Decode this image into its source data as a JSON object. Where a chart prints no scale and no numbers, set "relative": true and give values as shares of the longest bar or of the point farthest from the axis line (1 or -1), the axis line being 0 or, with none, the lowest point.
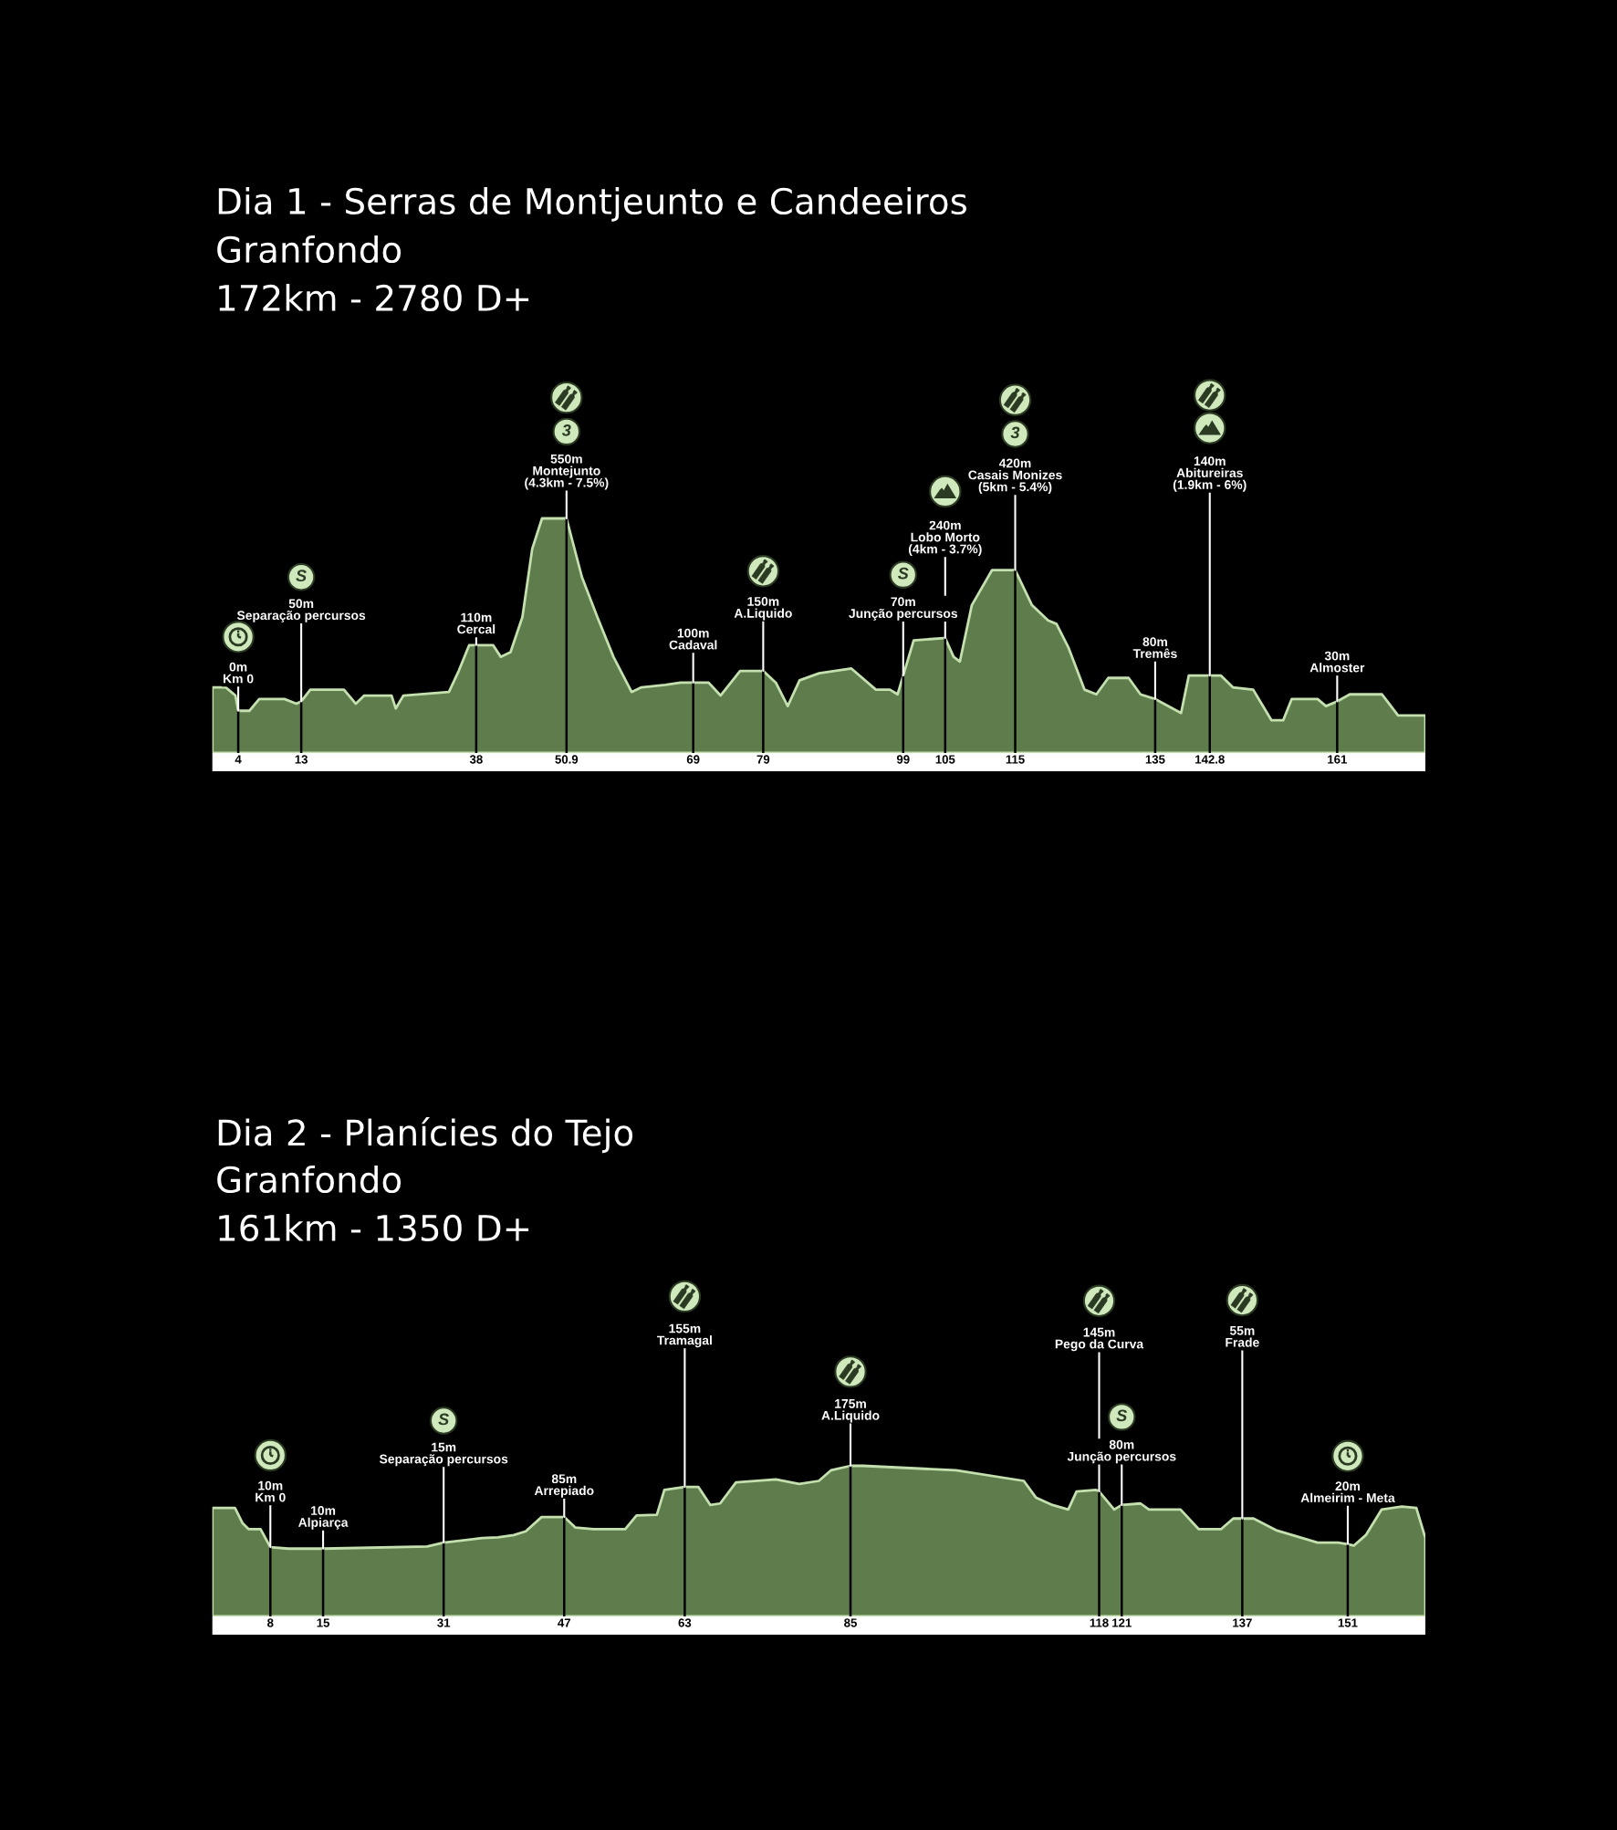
{
  "chart_data": [
    {
      "type": "area",
      "title": "Dia 1 - Serras de Montjeunto e Candeeiros",
      "subtitle": "Granfondo\n172km - 2780 D+",
      "relative": true,
      "tick_labels": "x",
      "x": [
        0.3,
        2.2,
        3.6,
        4,
        5.6,
        7.0,
        10.6,
        12.3,
        13,
        14.3,
        19.1,
        20.8,
        22.0,
        25.9,
        26.5,
        27.6,
        34.1,
        35.5,
        37.0,
        38,
        40.4,
        41.5,
        42.9,
        44.6,
        46.0,
        47.4,
        50.9,
        53.1,
        55.3,
        57.6,
        60.2,
        61.6,
        65.0,
        67.2,
        69,
        71.2,
        72.9,
        75.7,
        79,
        80.8,
        82.5,
        84.2,
        87.0,
        91.6,
        95.1,
        97.1,
        98.2,
        99,
        100.5,
        104.8,
        105,
        106.2,
        107.1,
        108.8,
        111.7,
        115,
        117.4,
        119.7,
        120.9,
        122.6,
        124.9,
        126.6,
        128.3,
        131.2,
        132.9,
        135,
        138.7,
        139.8,
        142.8,
        144.4,
        146.1,
        149.0,
        151.6,
        153.3,
        154.5,
        158.2,
        159.4,
        161,
        162.8,
        167.4,
        169.7,
        173.6
      ],
      "series": [
        {
          "color": "#5f7c4c",
          "values": [
            0.28,
            0.28,
            0.245,
            0.18,
            0.18,
            0.23,
            0.23,
            0.21,
            0.22,
            0.27,
            0.27,
            0.21,
            0.245,
            0.245,
            0.19,
            0.245,
            0.26,
            0.35,
            0.46,
            0.46,
            0.46,
            0.41,
            0.43,
            0.58,
            0.87,
            1.0,
            1.0,
            0.75,
            0.58,
            0.41,
            0.26,
            0.28,
            0.29,
            0.3,
            0.3,
            0.3,
            0.245,
            0.35,
            0.35,
            0.3,
            0.2,
            0.31,
            0.34,
            0.36,
            0.27,
            0.27,
            0.25,
            0.33,
            0.48,
            0.49,
            0.49,
            0.41,
            0.39,
            0.63,
            0.78,
            0.78,
            0.63,
            0.565,
            0.55,
            0.45,
            0.27,
            0.25,
            0.32,
            0.32,
            0.25,
            0.23,
            0.17,
            0.33,
            0.33,
            0.33,
            0.28,
            0.27,
            0.14,
            0.14,
            0.23,
            0.23,
            0.2,
            0.22,
            0.25,
            0.25,
            0.16,
            0.16
          ]
        }
      ],
      "xlim": [
        0.3,
        173.6
      ],
      "xticks": [
        4,
        13,
        38,
        50.9,
        69,
        79,
        99,
        105,
        115,
        135,
        142.8,
        161
      ],
      "ref_lines": [
        {
          "axis": "x",
          "value": 4,
          "color": "#000000"
        },
        {
          "axis": "x",
          "value": 13,
          "color": "#000000"
        },
        {
          "axis": "x",
          "value": 38,
          "color": "#000000"
        },
        {
          "axis": "x",
          "value": 50.9,
          "color": "#000000"
        },
        {
          "axis": "x",
          "value": 69,
          "color": "#000000"
        },
        {
          "axis": "x",
          "value": 79,
          "color": "#000000"
        },
        {
          "axis": "x",
          "value": 99,
          "color": "#000000"
        },
        {
          "axis": "x",
          "value": 105,
          "color": "#000000"
        },
        {
          "axis": "x",
          "value": 115,
          "color": "#000000"
        },
        {
          "axis": "x",
          "value": 135,
          "color": "#000000"
        },
        {
          "axis": "x",
          "value": 142.8,
          "color": "#000000"
        },
        {
          "axis": "x",
          "value": 161,
          "color": "#000000"
        }
      ],
      "annotations": [
        {
          "text": "0m\nKm 0",
          "x": 4,
          "y": 0.18
        },
        "S",
        {
          "text": "50m\nSeparação percursos",
          "x": 13,
          "y": 0.22
        },
        {
          "text": "110m\nCercal",
          "x": 38,
          "y": 0.46
        },
        "3",
        {
          "text": "550m\nMontejunto\n(4.3km - 7.5%)",
          "x": 50.9,
          "y": 1.0
        },
        {
          "text": "100m\nCadaval",
          "x": 69,
          "y": 0.3
        },
        {
          "text": "150m\nA.Liquido",
          "x": 79,
          "y": 0.35
        },
        "S",
        {
          "text": "70m\nJunção percursos",
          "x": 99,
          "y": 0.33
        },
        {
          "text": "240m\nLobo Morto\n(4km - 3.7%)",
          "x": 105,
          "y": 0.49
        },
        "3",
        {
          "text": "420m\nCasais Monizes\n(5km - 5.4%)",
          "x": 115,
          "y": 0.78
        },
        {
          "text": "80m\nTremês",
          "x": 135,
          "y": 0.23
        },
        {
          "text": "140m\nAbitureiras\n(1.9km - 6%)",
          "x": 142.8,
          "y": 0.33
        },
        {
          "text": "30m\nAlmoster",
          "x": 161,
          "y": 0.22
        }
      ]
    },
    {
      "type": "area",
      "title": "Dia 2 - Planícies do Tejo",
      "subtitle": "Granfondo\n161km - 1350 D+",
      "relative": true,
      "tick_labels": "x",
      "x": [
        0.3,
        3.3,
        4.3,
        5.1,
        6.7,
        8,
        10.4,
        15,
        28.8,
        31,
        36.1,
        38.2,
        40.3,
        41.9,
        44.0,
        47,
        48.5,
        50.9,
        55.1,
        56.6,
        59.3,
        60.3,
        63,
        64.8,
        66.4,
        67.7,
        69.8,
        75.1,
        78.2,
        80.8,
        82.4,
        85,
        86.7,
        99.0,
        108.0,
        109.6,
        111.8,
        113.9,
        115.0,
        117.6,
        118,
        120.0,
        121,
        123.5,
        124.6,
        128.8,
        131.2,
        134.2,
        135.8,
        137,
        138.5,
        141.6,
        147.0,
        149.7,
        151,
        151.8,
        153.4,
        155.5,
        158.2,
        160.1,
        161.3
      ],
      "series": [
        {
          "color": "#5f7c4c",
          "values": [
            0.72,
            0.72,
            0.62,
            0.58,
            0.58,
            0.46,
            0.45,
            0.45,
            0.465,
            0.49,
            0.52,
            0.525,
            0.54,
            0.565,
            0.66,
            0.66,
            0.59,
            0.58,
            0.58,
            0.67,
            0.675,
            0.84,
            0.86,
            0.86,
            0.74,
            0.75,
            0.89,
            0.91,
            0.88,
            0.9,
            0.97,
            1.0,
            1.0,
            0.97,
            0.9,
            0.79,
            0.74,
            0.71,
            0.83,
            0.84,
            0.83,
            0.71,
            0.74,
            0.75,
            0.71,
            0.71,
            0.58,
            0.58,
            0.65,
            0.65,
            0.65,
            0.57,
            0.49,
            0.49,
            0.48,
            0.47,
            0.54,
            0.71,
            0.73,
            0.72,
            0.52
          ]
        }
      ],
      "xlim": [
        0.3,
        161.3
      ],
      "xticks": [
        8,
        15,
        31,
        47,
        63,
        85,
        118,
        121,
        137,
        151
      ],
      "ref_lines": [
        {
          "axis": "x",
          "value": 8,
          "color": "#000000"
        },
        {
          "axis": "x",
          "value": 15,
          "color": "#000000"
        },
        {
          "axis": "x",
          "value": 31,
          "color": "#000000"
        },
        {
          "axis": "x",
          "value": 47,
          "color": "#000000"
        },
        {
          "axis": "x",
          "value": 63,
          "color": "#000000"
        },
        {
          "axis": "x",
          "value": 85,
          "color": "#000000"
        },
        {
          "axis": "x",
          "value": 118,
          "color": "#000000"
        },
        {
          "axis": "x",
          "value": 121,
          "color": "#000000"
        },
        {
          "axis": "x",
          "value": 137,
          "color": "#000000"
        },
        {
          "axis": "x",
          "value": 151,
          "color": "#000000"
        }
      ],
      "annotations": [
        {
          "text": "10m\nKm 0",
          "x": 8,
          "y": 0.46
        },
        {
          "text": "10m\nAlpiarça",
          "x": 15,
          "y": 0.45
        },
        "S",
        {
          "text": "15m\nSeparação percursos",
          "x": 31,
          "y": 0.49
        },
        {
          "text": "85m\nArrepiado",
          "x": 47,
          "y": 0.66
        },
        {
          "text": "155m\nTramagal",
          "x": 63,
          "y": 0.86
        },
        {
          "text": "175m\nA.Liquido",
          "x": 85,
          "y": 1.0
        },
        {
          "text": "145m\nPego da Curva",
          "x": 118,
          "y": 0.83
        },
        "S",
        {
          "text": "80m\nJunção percursos",
          "x": 121,
          "y": 0.74
        },
        {
          "text": "55m\nFrade",
          "x": 137,
          "y": 0.65
        },
        {
          "text": "20m\nAlmeirim - Meta",
          "x": 151,
          "y": 0.48
        }
      ]
    }
  ]
}
